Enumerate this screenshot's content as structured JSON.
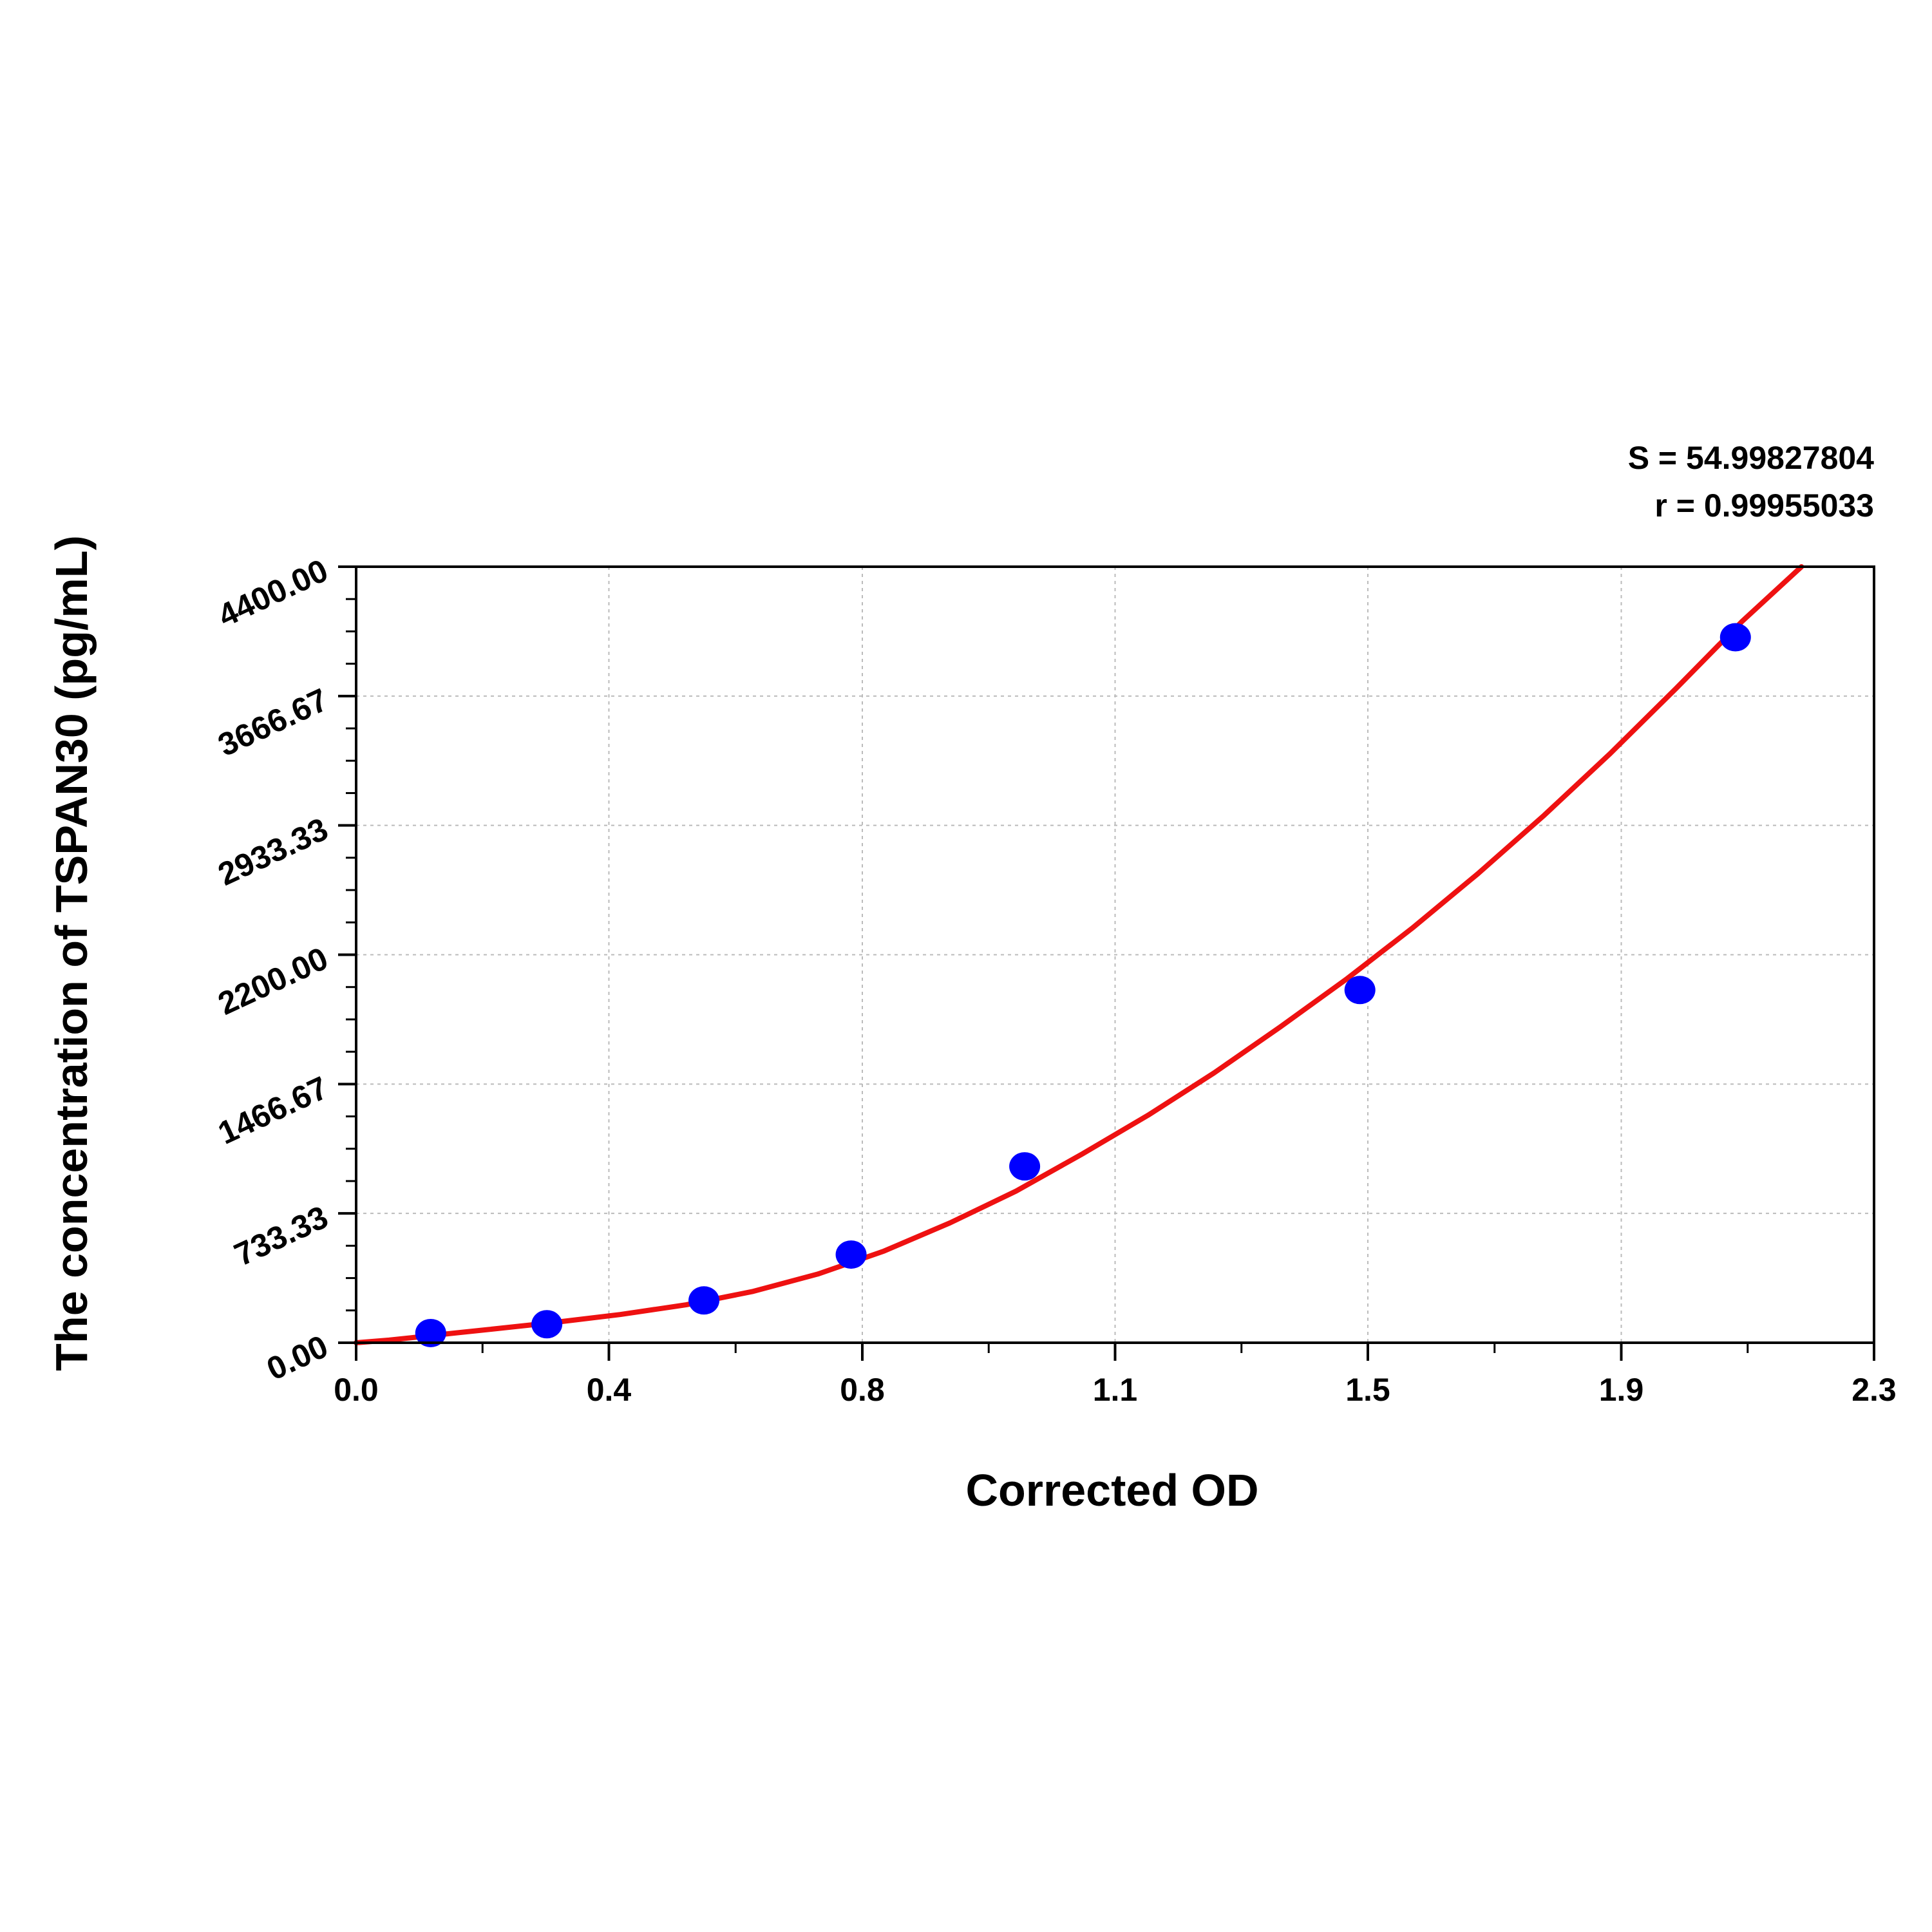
{
  "chart_data": {
    "type": "scatter",
    "xlabel": "Corrected OD",
    "ylabel": "The concentration of TSPAN30 (pg/mL)",
    "xlim": [
      0.0,
      2.3
    ],
    "ylim": [
      0.0,
      4400.0
    ],
    "x_ticks": [
      "0.0",
      "0.4",
      "0.8",
      "1.1",
      "1.5",
      "1.9",
      "2.3"
    ],
    "x_tick_values": [
      0.0,
      0.383,
      0.767,
      1.15,
      1.533,
      1.917,
      2.3
    ],
    "y_ticks": [
      "0.00",
      "733.33",
      "1466.67",
      "2200.00",
      "2933.33",
      "3666.67",
      "4400.00"
    ],
    "y_tick_values": [
      0,
      733.33,
      1466.67,
      2200.0,
      2933.33,
      3666.67,
      4400.0
    ],
    "grid": true,
    "stats": [
      "S = 54.99827804",
      "r = 0.99955033"
    ],
    "series": [
      {
        "type": "scatter",
        "color": "#0000ff",
        "points": [
          {
            "x": 0.113,
            "y": 55
          },
          {
            "x": 0.289,
            "y": 105
          },
          {
            "x": 0.527,
            "y": 240
          },
          {
            "x": 0.75,
            "y": 500
          },
          {
            "x": 1.013,
            "y": 1000
          },
          {
            "x": 1.521,
            "y": 2000
          },
          {
            "x": 2.09,
            "y": 4000
          }
        ]
      },
      {
        "type": "line",
        "color": "#ee1111",
        "x": [
          0.0,
          0.05,
          0.1,
          0.15,
          0.2,
          0.25,
          0.3,
          0.4,
          0.5,
          0.6,
          0.7,
          0.8,
          0.9,
          1.0,
          1.1,
          1.2,
          1.3,
          1.4,
          1.5,
          1.6,
          1.7,
          1.8,
          1.9,
          2.0,
          2.1,
          2.19
        ],
        "y": [
          0,
          15,
          35,
          55,
          75,
          95,
          115,
          160,
          215,
          290,
          390,
          520,
          680,
          860,
          1070,
          1290,
          1530,
          1790,
          2060,
          2350,
          2660,
          2990,
          3340,
          3710,
          4090,
          4400
        ]
      }
    ]
  }
}
